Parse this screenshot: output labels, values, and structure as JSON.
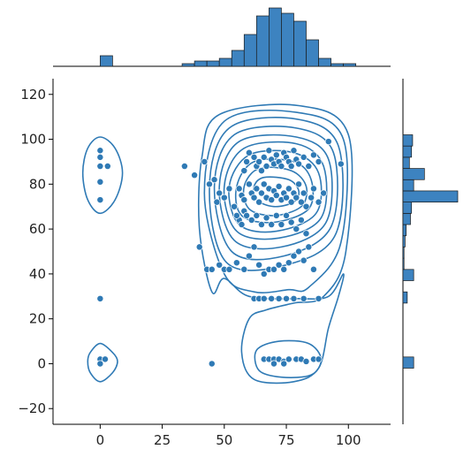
{
  "chart_data": {
    "type": "scatter",
    "title": "",
    "xlabel": "",
    "ylabel": "",
    "xlim": [
      -19,
      117
    ],
    "ylim": [
      -27,
      127
    ],
    "x_ticks": [
      0,
      25,
      50,
      75,
      100
    ],
    "y_ticks": [
      -20,
      0,
      20,
      40,
      60,
      80,
      100,
      120
    ],
    "grid": false,
    "legend": "none",
    "color": "#2f7ab5",
    "bar_color": "#3d83c0",
    "points": [
      [
        0,
        95
      ],
      [
        0,
        92
      ],
      [
        0,
        88
      ],
      [
        3,
        88
      ],
      [
        0,
        81
      ],
      [
        0,
        73
      ],
      [
        0,
        29
      ],
      [
        0,
        2
      ],
      [
        2,
        2
      ],
      [
        0,
        0
      ],
      [
        45,
        0
      ],
      [
        66,
        2
      ],
      [
        68,
        2
      ],
      [
        70,
        2
      ],
      [
        72,
        2
      ],
      [
        74,
        1
      ],
      [
        76,
        2
      ],
      [
        79,
        2
      ],
      [
        81,
        2
      ],
      [
        83,
        1
      ],
      [
        86,
        2
      ],
      [
        88,
        2
      ],
      [
        70,
        0
      ],
      [
        74,
        0
      ],
      [
        34,
        88
      ],
      [
        38,
        84
      ],
      [
        42,
        90
      ],
      [
        44,
        80
      ],
      [
        46,
        82
      ],
      [
        48,
        76
      ],
      [
        47,
        72
      ],
      [
        50,
        74
      ],
      [
        52,
        78
      ],
      [
        54,
        70
      ],
      [
        56,
        64
      ],
      [
        58,
        68
      ],
      [
        58,
        86
      ],
      [
        59,
        90
      ],
      [
        60,
        94
      ],
      [
        62,
        92
      ],
      [
        63,
        88
      ],
      [
        64,
        90
      ],
      [
        65,
        86
      ],
      [
        66,
        92
      ],
      [
        67,
        88
      ],
      [
        68,
        95
      ],
      [
        69,
        91
      ],
      [
        70,
        89
      ],
      [
        71,
        93
      ],
      [
        72,
        90
      ],
      [
        73,
        88
      ],
      [
        74,
        94
      ],
      [
        75,
        92
      ],
      [
        76,
        90
      ],
      [
        77,
        88
      ],
      [
        78,
        95
      ],
      [
        79,
        91
      ],
      [
        80,
        89
      ],
      [
        82,
        92
      ],
      [
        84,
        88
      ],
      [
        86,
        93
      ],
      [
        88,
        90
      ],
      [
        92,
        99
      ],
      [
        97,
        89
      ],
      [
        56,
        78
      ],
      [
        57,
        75
      ],
      [
        58,
        73
      ],
      [
        60,
        80
      ],
      [
        61,
        76
      ],
      [
        62,
        74
      ],
      [
        63,
        78
      ],
      [
        64,
        72
      ],
      [
        65,
        76
      ],
      [
        66,
        80
      ],
      [
        67,
        74
      ],
      [
        68,
        78
      ],
      [
        69,
        73
      ],
      [
        70,
        77
      ],
      [
        71,
        75
      ],
      [
        72,
        79
      ],
      [
        73,
        73
      ],
      [
        74,
        76
      ],
      [
        75,
        74
      ],
      [
        76,
        78
      ],
      [
        77,
        72
      ],
      [
        78,
        76
      ],
      [
        79,
        74
      ],
      [
        80,
        80
      ],
      [
        81,
        72
      ],
      [
        82,
        76
      ],
      [
        83,
        70
      ],
      [
        85,
        74
      ],
      [
        86,
        78
      ],
      [
        88,
        72
      ],
      [
        90,
        76
      ],
      [
        55,
        66
      ],
      [
        57,
        62
      ],
      [
        59,
        66
      ],
      [
        61,
        64
      ],
      [
        63,
        66
      ],
      [
        65,
        62
      ],
      [
        67,
        65
      ],
      [
        69,
        62
      ],
      [
        71,
        66
      ],
      [
        73,
        62
      ],
      [
        75,
        66
      ],
      [
        77,
        63
      ],
      [
        79,
        60
      ],
      [
        81,
        64
      ],
      [
        83,
        58
      ],
      [
        40,
        52
      ],
      [
        43,
        42
      ],
      [
        45,
        42
      ],
      [
        48,
        44
      ],
      [
        50,
        42
      ],
      [
        52,
        42
      ],
      [
        55,
        45
      ],
      [
        58,
        42
      ],
      [
        60,
        48
      ],
      [
        62,
        52
      ],
      [
        64,
        44
      ],
      [
        66,
        40
      ],
      [
        68,
        42
      ],
      [
        70,
        42
      ],
      [
        72,
        44
      ],
      [
        74,
        42
      ],
      [
        76,
        45
      ],
      [
        78,
        48
      ],
      [
        80,
        50
      ],
      [
        82,
        46
      ],
      [
        84,
        52
      ],
      [
        86,
        42
      ],
      [
        62,
        29
      ],
      [
        64,
        29
      ],
      [
        66,
        29
      ],
      [
        69,
        29
      ],
      [
        72,
        29
      ],
      [
        75,
        29
      ],
      [
        78,
        29
      ],
      [
        82,
        29
      ],
      [
        88,
        29
      ]
    ],
    "contours": [
      [
        [
          66,
          83
        ],
        [
          76,
          82
        ],
        [
          80,
          77
        ],
        [
          78,
          72
        ],
        [
          70,
          70
        ],
        [
          63,
          73
        ],
        [
          62,
          79
        ]
      ],
      [
        [
          64,
          87
        ],
        [
          77,
          86
        ],
        [
          83,
          79
        ],
        [
          81,
          70
        ],
        [
          70,
          66
        ],
        [
          60,
          69
        ],
        [
          58,
          79
        ]
      ],
      [
        [
          62,
          90
        ],
        [
          78,
          90
        ],
        [
          85,
          82
        ],
        [
          84,
          69
        ],
        [
          70,
          63
        ],
        [
          57,
          66
        ],
        [
          55,
          79
        ]
      ],
      [
        [
          60,
          93
        ],
        [
          78,
          94
        ],
        [
          88,
          85
        ],
        [
          87,
          67
        ],
        [
          71,
          59
        ],
        [
          56,
          62
        ],
        [
          52,
          79
        ]
      ],
      [
        [
          58,
          96
        ],
        [
          79,
          98
        ],
        [
          90,
          88
        ],
        [
          89,
          65
        ],
        [
          72,
          56
        ],
        [
          55,
          59
        ],
        [
          50,
          79
        ]
      ],
      [
        [
          56,
          99
        ],
        [
          79,
          101
        ],
        [
          92,
          91
        ],
        [
          91,
          63
        ],
        [
          73,
          52
        ],
        [
          54,
          55
        ],
        [
          48,
          79
        ]
      ],
      [
        [
          54,
          102
        ],
        [
          79,
          105
        ],
        [
          94,
          94
        ],
        [
          93,
          61
        ],
        [
          74,
          48
        ],
        [
          53,
          50
        ],
        [
          46,
          79
        ]
      ],
      [
        [
          52,
          105
        ],
        [
          79,
          109
        ],
        [
          96,
          97
        ],
        [
          95,
          58
        ],
        [
          75,
          44
        ],
        [
          51,
          45
        ],
        [
          44,
          78
        ]
      ],
      [
        [
          50,
          108
        ],
        [
          79,
          112
        ],
        [
          98,
          100
        ],
        [
          97,
          54
        ],
        [
          84,
          34
        ],
        [
          76,
          33
        ],
        [
          62,
          32
        ],
        [
          50,
          40
        ],
        [
          42,
          76
        ]
      ],
      [
        [
          48,
          111
        ],
        [
          80,
          115
        ],
        [
          100,
          102
        ],
        [
          99,
          50
        ],
        [
          90,
          30
        ],
        [
          78,
          27
        ],
        [
          67,
          24
        ],
        [
          60,
          20
        ],
        [
          57,
          5
        ],
        [
          62,
          -7
        ],
        [
          78,
          -8
        ],
        [
          88,
          -2
        ],
        [
          92,
          16
        ],
        [
          96,
          30
        ],
        [
          98,
          40
        ],
        [
          92,
          30
        ],
        [
          80,
          29
        ],
        [
          60,
          30
        ],
        [
          50,
          38
        ],
        [
          45,
          32
        ],
        [
          40,
          60
        ],
        [
          41,
          92
        ]
      ],
      [
        [
          72,
          10
        ],
        [
          84,
          9
        ],
        [
          89,
          2
        ],
        [
          85,
          -5
        ],
        [
          73,
          -6
        ],
        [
          64,
          -3
        ],
        [
          63,
          6
        ]
      ],
      [
        [
          0,
          101
        ],
        [
          6,
          96
        ],
        [
          9,
          85
        ],
        [
          6,
          73
        ],
        [
          0,
          67
        ],
        [
          -5,
          73
        ],
        [
          -7,
          85
        ],
        [
          -5,
          96
        ]
      ],
      [
        [
          0,
          9
        ],
        [
          5,
          5
        ],
        [
          7,
          1
        ],
        [
          5,
          -4
        ],
        [
          0,
          -8
        ],
        [
          -4,
          -4
        ],
        [
          -5,
          1
        ],
        [
          -4,
          5
        ]
      ]
    ],
    "x_hist": {
      "bins": [
        [
          0,
          5
        ],
        [
          33,
          38
        ],
        [
          38,
          43
        ],
        [
          43,
          48
        ],
        [
          48,
          53
        ],
        [
          53,
          58
        ],
        [
          58,
          63
        ],
        [
          63,
          68
        ],
        [
          68,
          73
        ],
        [
          73,
          78
        ],
        [
          78,
          83
        ],
        [
          83,
          88
        ],
        [
          88,
          93
        ],
        [
          93,
          98
        ],
        [
          98,
          103
        ]
      ],
      "counts": [
        4,
        1,
        2,
        2,
        3,
        6,
        12,
        19,
        22,
        20,
        17,
        10,
        3,
        1,
        1
      ]
    },
    "y_hist": {
      "bins": [
        [
          -2,
          3
        ],
        [
          27,
          32
        ],
        [
          37,
          42
        ],
        [
          42,
          47
        ],
        [
          47,
          52
        ],
        [
          52,
          57
        ],
        [
          57,
          62
        ],
        [
          62,
          67
        ],
        [
          67,
          72
        ],
        [
          72,
          77
        ],
        [
          77,
          82
        ],
        [
          82,
          87
        ],
        [
          87,
          92
        ],
        [
          92,
          97
        ],
        [
          97,
          102
        ]
      ],
      "counts": [
        10,
        4,
        10,
        1,
        1,
        2,
        3,
        7,
        8,
        51,
        10,
        20,
        6,
        8,
        9
      ]
    }
  }
}
